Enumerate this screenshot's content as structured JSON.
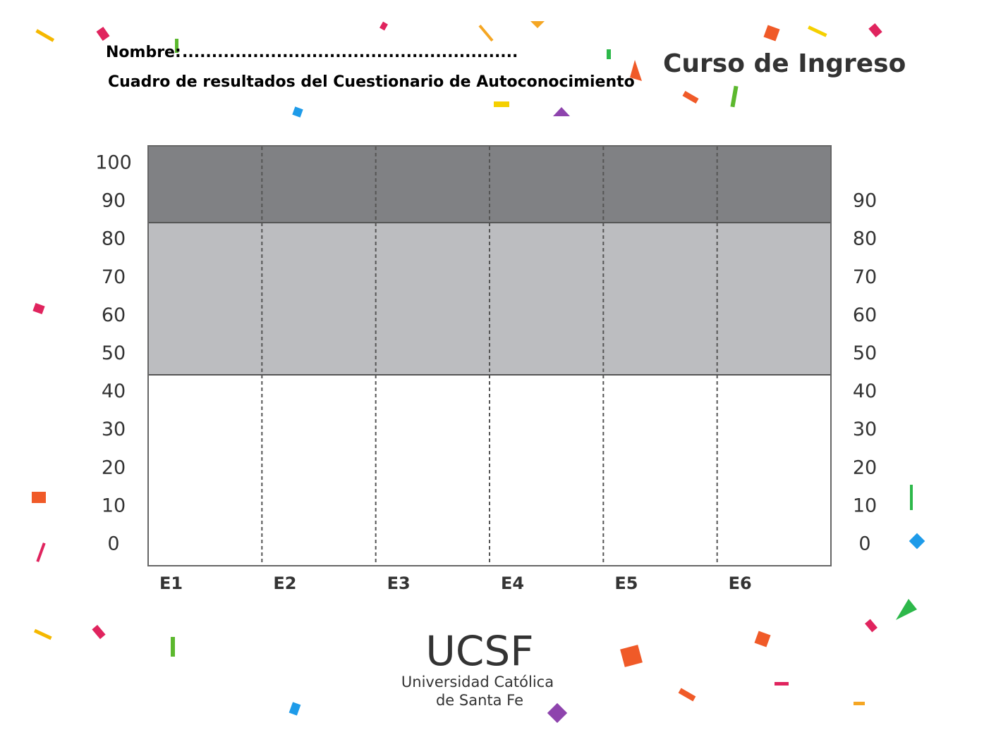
{
  "header": {
    "name_label": "Nombre:",
    "name_line": ".........................................................",
    "subtitle": "Cuadro de resultados del Cuestionario de Autoconocimiento",
    "brand": "Curso de Ingreso"
  },
  "grid": {
    "left_ticks": [
      100,
      90,
      80,
      70,
      60,
      50,
      40,
      30,
      20,
      10,
      0
    ],
    "right_ticks": [
      90,
      80,
      70,
      60,
      50,
      40,
      30,
      20,
      10,
      0
    ],
    "columns": [
      "E1",
      "E2",
      "E3",
      "E4",
      "E5",
      "E6"
    ]
  },
  "footer": {
    "logo": "UCSF",
    "line1": "Universidad Católica",
    "line2": "de Santa Fe"
  }
}
